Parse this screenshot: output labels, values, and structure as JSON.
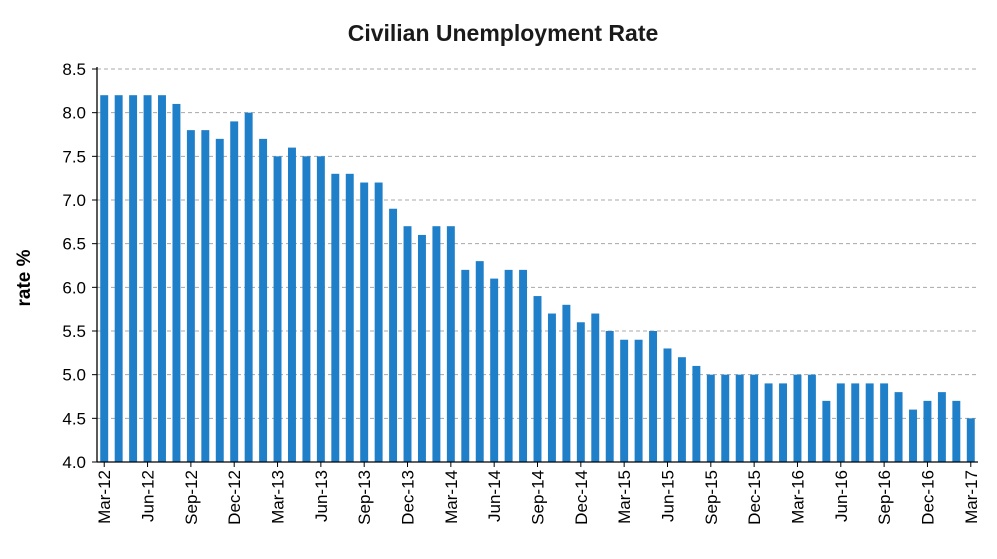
{
  "chart_data": {
    "type": "bar",
    "title": "Civilian Unemployment Rate",
    "ylabel": "rate %",
    "xlabel": "",
    "ylim": [
      4.0,
      8.5
    ],
    "yticks": [
      4.0,
      4.5,
      5.0,
      5.5,
      6.0,
      6.5,
      7.0,
      7.5,
      8.0,
      8.5
    ],
    "ytick_labels": [
      "4.0",
      "4.5",
      "5.0",
      "5.5",
      "6.0",
      "6.5",
      "7.0",
      "7.5",
      "8.0",
      "8.5"
    ],
    "grid": true,
    "bar_color": "#1f7fc8",
    "categories": [
      "Mar-12",
      "Apr-12",
      "May-12",
      "Jun-12",
      "Jul-12",
      "Aug-12",
      "Sep-12",
      "Oct-12",
      "Nov-12",
      "Dec-12",
      "Jan-13",
      "Feb-13",
      "Mar-13",
      "Apr-13",
      "May-13",
      "Jun-13",
      "Jul-13",
      "Aug-13",
      "Sep-13",
      "Oct-13",
      "Nov-13",
      "Dec-13",
      "Jan-14",
      "Feb-14",
      "Mar-14",
      "Apr-14",
      "May-14",
      "Jun-14",
      "Jul-14",
      "Aug-14",
      "Sep-14",
      "Oct-14",
      "Nov-14",
      "Dec-14",
      "Jan-15",
      "Feb-15",
      "Mar-15",
      "Apr-15",
      "May-15",
      "Jun-15",
      "Jul-15",
      "Aug-15",
      "Sep-15",
      "Oct-15",
      "Nov-15",
      "Dec-15",
      "Jan-16",
      "Feb-16",
      "Mar-16",
      "Apr-16",
      "May-16",
      "Jun-16",
      "Jul-16",
      "Aug-16",
      "Sep-16",
      "Oct-16",
      "Nov-16",
      "Dec-16",
      "Jan-17",
      "Feb-17",
      "Mar-17"
    ],
    "values": [
      8.2,
      8.2,
      8.2,
      8.2,
      8.2,
      8.1,
      7.8,
      7.8,
      7.7,
      7.9,
      8.0,
      7.7,
      7.5,
      7.6,
      7.5,
      7.5,
      7.3,
      7.3,
      7.2,
      7.2,
      6.9,
      6.7,
      6.6,
      6.7,
      6.7,
      6.2,
      6.3,
      6.1,
      6.2,
      6.2,
      5.9,
      5.7,
      5.8,
      5.6,
      5.7,
      5.5,
      5.4,
      5.4,
      5.5,
      5.3,
      5.2,
      5.1,
      5.0,
      5.0,
      5.0,
      5.0,
      4.9,
      4.9,
      5.0,
      5.0,
      4.7,
      4.9,
      4.9,
      4.9,
      4.9,
      4.8,
      4.6,
      4.7,
      4.8,
      4.7,
      4.5
    ],
    "xtick_labels": [
      "Mar-12",
      "Jun-12",
      "Sep-12",
      "Dec-12",
      "Mar-13",
      "Jun-13",
      "Sep-13",
      "Dec-13",
      "Mar-14",
      "Jun-14",
      "Sep-14",
      "Dec-14",
      "Mar-15",
      "Jun-15",
      "Sep-15",
      "Dec-15",
      "Mar-16",
      "Jun-16",
      "Sep-16",
      "Dec-16",
      "Mar-17"
    ]
  }
}
